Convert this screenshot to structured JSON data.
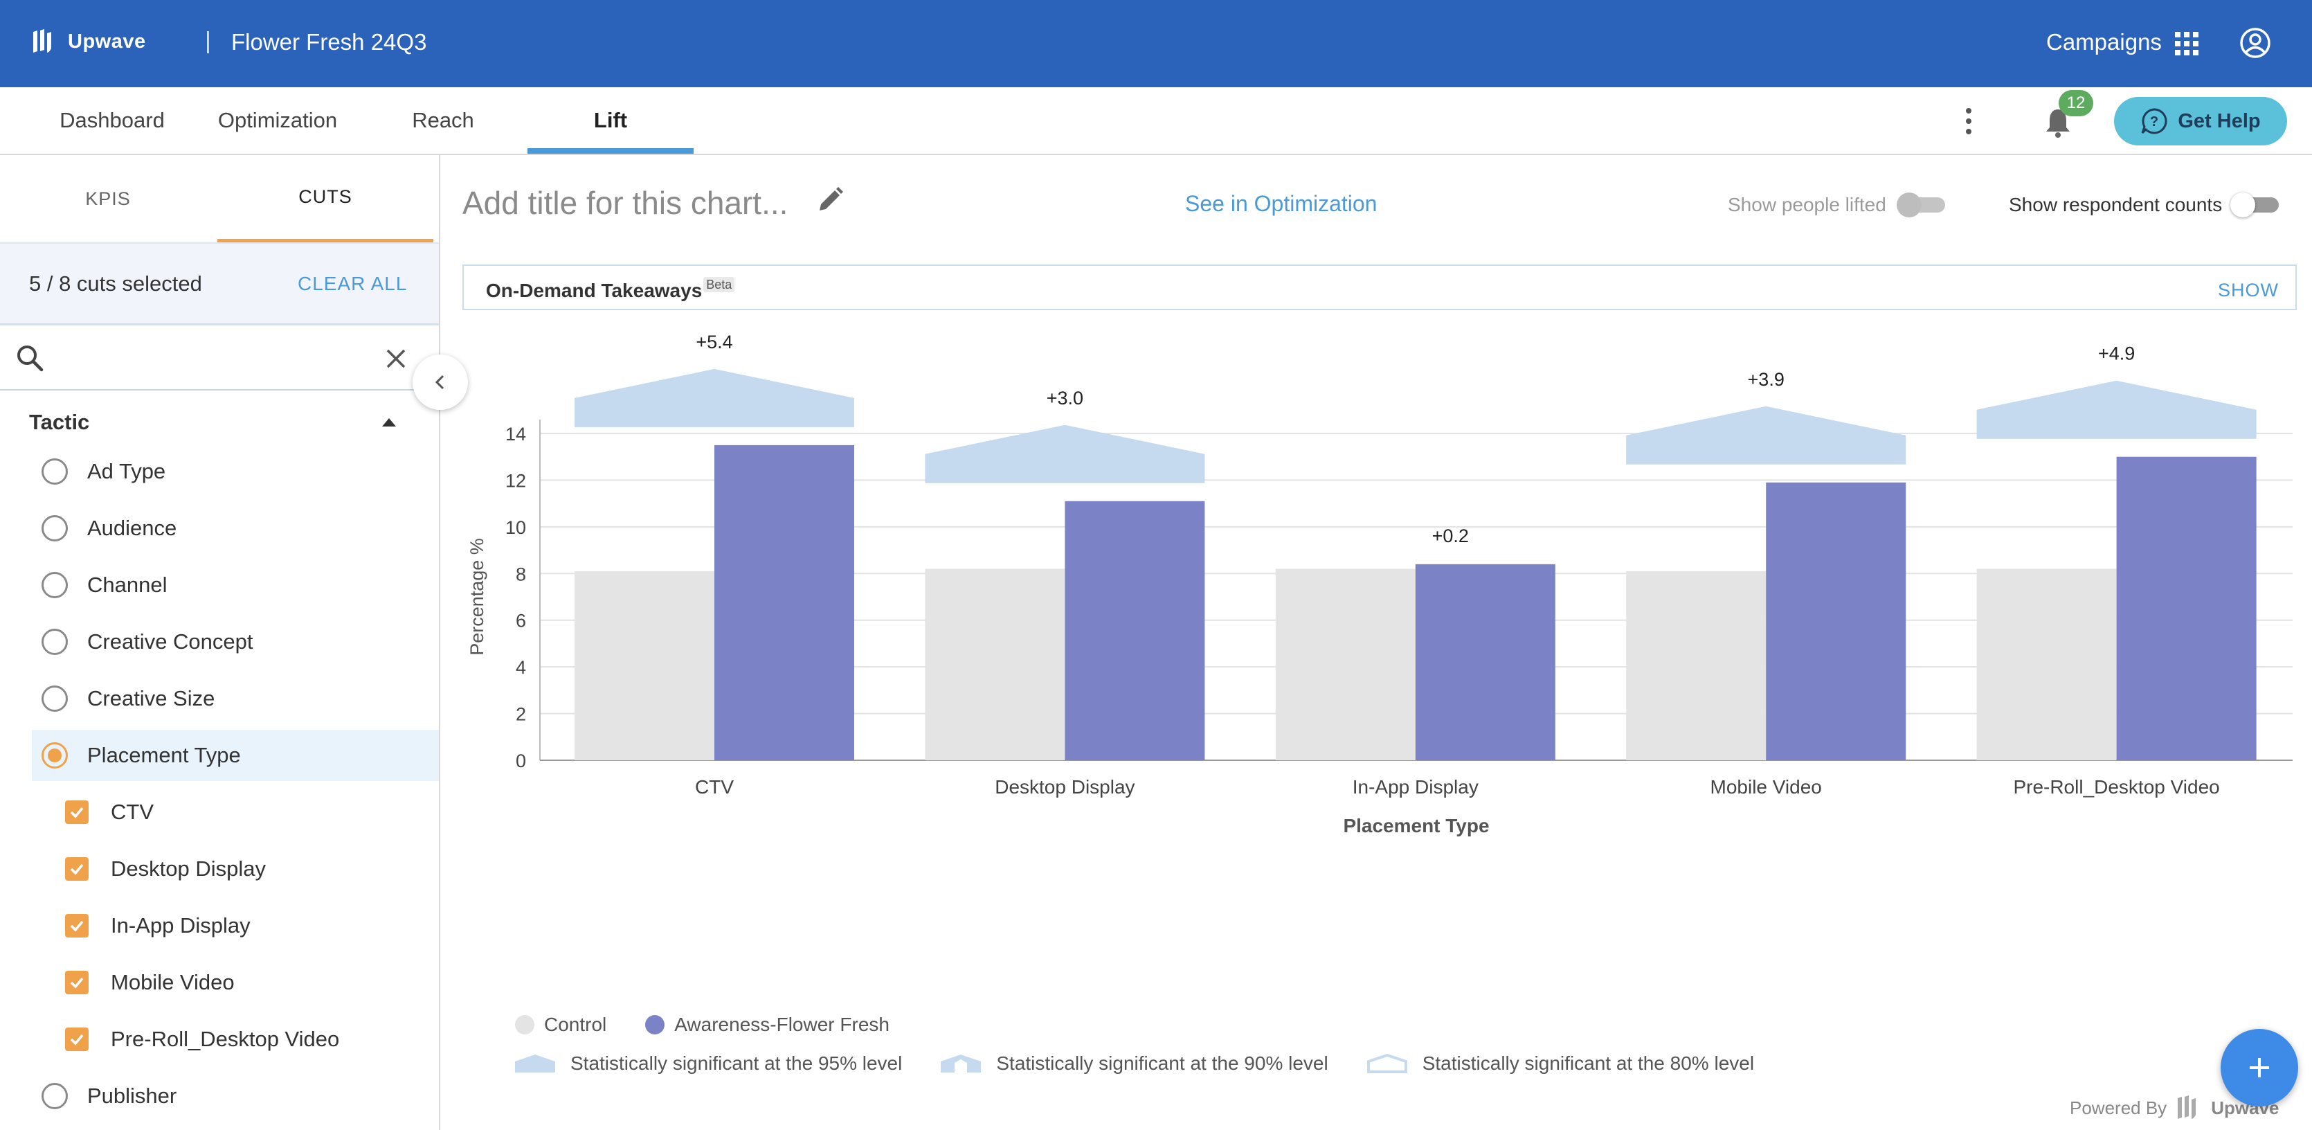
{
  "header": {
    "logo_text": "Upwave",
    "separator": "|",
    "project_title": "Flower Fresh 24Q3",
    "campaigns_label": "Campaigns"
  },
  "nav": {
    "tabs": [
      {
        "label": "Dashboard",
        "active": false
      },
      {
        "label": "Optimization",
        "active": false
      },
      {
        "label": "Reach",
        "active": false
      },
      {
        "label": "Lift",
        "active": true
      }
    ],
    "notification_count": "12",
    "help_label": "Get Help"
  },
  "sidebar": {
    "tabs": [
      {
        "label": "KPIS",
        "active": false
      },
      {
        "label": "CUTS",
        "active": true
      }
    ],
    "selected_text": "5 / 8 cuts selected",
    "clear_all": "CLEAR ALL",
    "search": {
      "value": "",
      "placeholder": ""
    },
    "group_title": "Tactic",
    "cuts": [
      {
        "label": "Ad Type",
        "kind": "radio",
        "selected": false
      },
      {
        "label": "Audience",
        "kind": "radio",
        "selected": false
      },
      {
        "label": "Channel",
        "kind": "radio",
        "selected": false
      },
      {
        "label": "Creative Concept",
        "kind": "radio",
        "selected": false
      },
      {
        "label": "Creative Size",
        "kind": "radio",
        "selected": false
      },
      {
        "label": "Placement Type",
        "kind": "radio",
        "selected": true
      },
      {
        "label": "CTV",
        "kind": "check",
        "checked": true
      },
      {
        "label": "Desktop Display",
        "kind": "check",
        "checked": true
      },
      {
        "label": "In-App Display",
        "kind": "check",
        "checked": true
      },
      {
        "label": "Mobile Video",
        "kind": "check",
        "checked": true
      },
      {
        "label": "Pre-Roll_Desktop Video",
        "kind": "check",
        "checked": true
      },
      {
        "label": "Publisher",
        "kind": "radio",
        "selected": false
      }
    ]
  },
  "main": {
    "chart_title_placeholder": "Add title for this chart...",
    "see_in_optimization": "See in Optimization",
    "show_people_lifted": {
      "label": "Show people lifted",
      "on": false
    },
    "show_respondent_counts": {
      "label": "Show respondent counts",
      "on": false
    },
    "takeaways": {
      "label": "On-Demand Takeaways",
      "badge": "Beta",
      "action": "SHOW"
    },
    "legend": {
      "control": "Control",
      "exposed": "Awareness-Flower Fresh",
      "sig95": "Statistically significant at the 95% level",
      "sig90": "Statistically significant at the 90% level",
      "sig80": "Statistically significant at the 80% level"
    },
    "powered_by": "Powered By",
    "powered_brand": "Upwave"
  },
  "colors": {
    "header_bg": "#2b62ba",
    "control": "#e4e4e4",
    "exposed": "#7b83c6",
    "lift_band": "#c5d9ef",
    "accent_orange": "#f0a24a",
    "link_blue": "#4a9ad9"
  },
  "chart_data": {
    "type": "bar",
    "xlabel": "Placement Type",
    "ylabel": "Percentage %",
    "ylim": [
      0,
      14
    ],
    "yticks": [
      0,
      2,
      4,
      6,
      8,
      10,
      12,
      14
    ],
    "grid": true,
    "legend_position": "bottom-left",
    "categories": [
      "CTV",
      "Desktop Display",
      "In-App Display",
      "Mobile Video",
      "Pre-Roll_Desktop Video"
    ],
    "series": [
      {
        "name": "Control",
        "values": [
          8.1,
          8.2,
          8.2,
          8.1,
          8.2
        ]
      },
      {
        "name": "Awareness-Flower Fresh",
        "values": [
          13.5,
          11.1,
          8.4,
          11.9,
          13.0
        ]
      }
    ],
    "lift_labels": [
      "+5.4",
      "+3.0",
      "+0.2",
      "+3.9",
      "+4.9"
    ],
    "significance": [
      "95%",
      "95%",
      "none",
      "95%",
      "95%"
    ]
  }
}
